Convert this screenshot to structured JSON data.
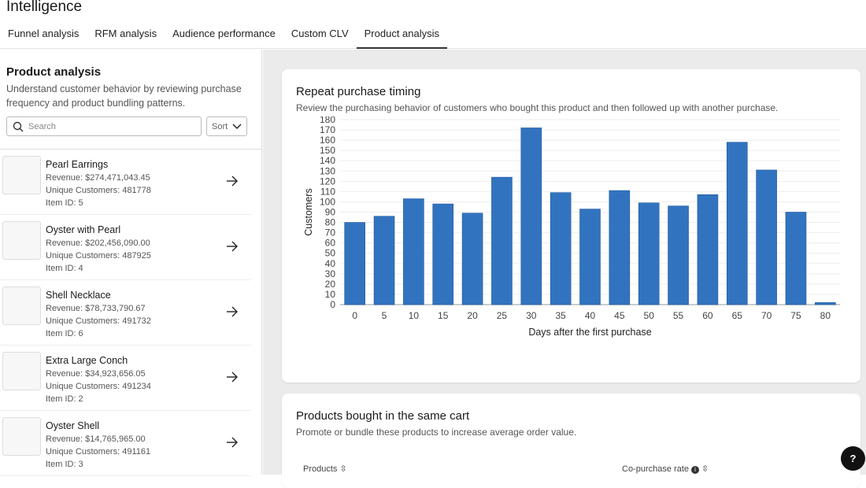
{
  "app": {
    "title": "Intelligence"
  },
  "tabs": [
    {
      "label": "Funnel analysis"
    },
    {
      "label": "RFM analysis"
    },
    {
      "label": "Audience performance"
    },
    {
      "label": "Custom CLV"
    },
    {
      "label": "Product analysis",
      "active": true
    }
  ],
  "sidebar": {
    "title": "Product analysis",
    "description": "Understand customer behavior by reviewing purchase frequency and product bundling patterns.",
    "search_placeholder": "Search",
    "sort_label": "Sort",
    "products": [
      {
        "name": "Pearl Earrings",
        "revenue": "Revenue: $274,471,043.45",
        "customers": "Unique Customers: 481778",
        "item_id": "Item ID: 5"
      },
      {
        "name": "Oyster with Pearl",
        "revenue": "Revenue: $202,456,090.00",
        "customers": "Unique Customers: 487925",
        "item_id": "Item ID: 4"
      },
      {
        "name": "Shell Necklace",
        "revenue": "Revenue: $78,733,790.67",
        "customers": "Unique Customers: 491732",
        "item_id": "Item ID: 6"
      },
      {
        "name": "Extra Large Conch",
        "revenue": "Revenue: $34,923,656.05",
        "customers": "Unique Customers: 491234",
        "item_id": "Item ID: 2"
      },
      {
        "name": "Oyster Shell",
        "revenue": "Revenue: $14,765,965.00",
        "customers": "Unique Customers: 491161",
        "item_id": "Item ID: 3"
      }
    ]
  },
  "repeat_card": {
    "title": "Repeat purchase timing",
    "subtitle": "Review the purchasing behavior of customers who bought this product and then followed up with another purchase."
  },
  "cart_card": {
    "title": "Products bought in the same cart",
    "subtitle": "Promote or bundle these products to increase average order value.",
    "col_products": "Products",
    "col_rate": "Co-purchase rate"
  },
  "help_label": "?",
  "chart_data": {
    "type": "bar",
    "xlabel": "Days after the first purchase",
    "ylabel": "Customers",
    "ylim": [
      0,
      180
    ],
    "yticks_step": 10,
    "grid": true,
    "color": "#3273bf",
    "categories": [
      "0",
      "5",
      "10",
      "15",
      "20",
      "25",
      "30",
      "35",
      "40",
      "45",
      "50",
      "55",
      "60",
      "65",
      "70",
      "75",
      "80"
    ],
    "values": [
      80,
      86,
      103,
      98,
      89,
      124,
      172,
      109,
      93,
      111,
      99,
      96,
      107,
      158,
      131,
      90,
      2
    ]
  }
}
